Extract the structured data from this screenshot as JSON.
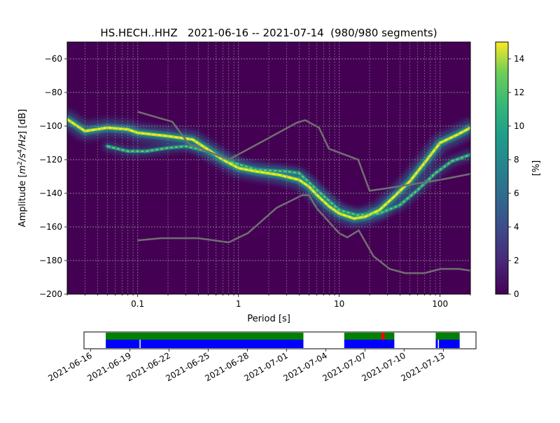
{
  "chart_data": {
    "type": "heatmap",
    "title": "HS.HECH..HHZ   2021-06-16 -- 2021-07-14  (980/980 segments)",
    "xlabel": "Period [s]",
    "ylabel_prefix": "Amplitude [",
    "ylabel_unit_main": "m",
    "ylabel_sup1": "2",
    "ylabel_mid": "/s",
    "ylabel_sup2": "4",
    "ylabel_end": "/Hz",
    "ylabel_suffix": "] [dB]",
    "x_scale": "log",
    "xlim": [
      0.02,
      200
    ],
    "ylim": [
      -200,
      -50
    ],
    "x_ticks": [
      {
        "v": 0.1,
        "label": "0.1"
      },
      {
        "v": 1,
        "label": "1"
      },
      {
        "v": 10,
        "label": "10"
      },
      {
        "v": 100,
        "label": "100"
      }
    ],
    "y_ticks": [
      {
        "v": -60,
        "label": "−60"
      },
      {
        "v": -80,
        "label": "−80"
      },
      {
        "v": -100,
        "label": "−100"
      },
      {
        "v": -120,
        "label": "−120"
      },
      {
        "v": -140,
        "label": "−140"
      },
      {
        "v": -160,
        "label": "−160"
      },
      {
        "v": -180,
        "label": "−180"
      },
      {
        "v": -200,
        "label": "−200"
      }
    ],
    "grid": true,
    "colorbar": {
      "label": "[%]",
      "range": [
        0,
        15
      ],
      "ticks": [
        {
          "v": 0,
          "label": "0"
        },
        {
          "v": 2,
          "label": "2"
        },
        {
          "v": 4,
          "label": "4"
        },
        {
          "v": 6,
          "label": "6"
        },
        {
          "v": 8,
          "label": "8"
        },
        {
          "v": 10,
          "label": "10"
        },
        {
          "v": 12,
          "label": "12"
        },
        {
          "v": 14,
          "label": "14"
        }
      ],
      "colormap": "viridis"
    },
    "nhnm": [
      [
        0.1,
        -168
      ],
      [
        0.17,
        -166.7
      ],
      [
        0.4,
        -166.7
      ],
      [
        0.8,
        -169.2
      ],
      [
        1.24,
        -163.7
      ],
      [
        2.4,
        -148.6
      ],
      [
        4.3,
        -141.1
      ],
      [
        5,
        -141.1
      ],
      [
        6,
        -149
      ],
      [
        10,
        -163.8
      ],
      [
        12,
        -166.2
      ],
      [
        15.6,
        -162.1
      ],
      [
        21.9,
        -177.5
      ],
      [
        31.6,
        -185
      ],
      [
        45,
        -187.5
      ],
      [
        70,
        -187.5
      ],
      [
        101,
        -185
      ],
      [
        154,
        -185
      ],
      [
        200,
        -186
      ]
    ],
    "nlnm": [
      [
        0.1,
        -91.5
      ],
      [
        0.22,
        -97.4
      ],
      [
        0.32,
        -110.5
      ],
      [
        0.8,
        -120
      ],
      [
        3.8,
        -98
      ],
      [
        4.6,
        -96.5
      ],
      [
        6.3,
        -101
      ],
      [
        7.9,
        -113.5
      ],
      [
        15.4,
        -120
      ],
      [
        20,
        -138.5
      ],
      [
        30,
        -137
      ],
      [
        100,
        -132
      ],
      [
        200,
        -128.5
      ]
    ],
    "psd_ridge_main": [
      [
        0.02,
        -96
      ],
      [
        0.03,
        -103
      ],
      [
        0.05,
        -101
      ],
      [
        0.08,
        -102
      ],
      [
        0.1,
        -104
      ],
      [
        0.2,
        -106
      ],
      [
        0.35,
        -108
      ],
      [
        0.5,
        -114
      ],
      [
        0.7,
        -120
      ],
      [
        1,
        -125
      ],
      [
        1.5,
        -127
      ],
      [
        2.5,
        -129
      ],
      [
        4,
        -132
      ],
      [
        5,
        -136
      ],
      [
        6,
        -141
      ],
      [
        8,
        -148
      ],
      [
        10,
        -152
      ],
      [
        14,
        -155
      ],
      [
        18,
        -154
      ],
      [
        25,
        -150
      ],
      [
        35,
        -142
      ],
      [
        50,
        -133
      ],
      [
        70,
        -122
      ],
      [
        100,
        -110
      ],
      [
        150,
        -105
      ],
      [
        200,
        -101
      ]
    ],
    "psd_ridge_secondary": [
      [
        0.05,
        -112
      ],
      [
        0.08,
        -115
      ],
      [
        0.12,
        -115
      ],
      [
        0.2,
        -113
      ],
      [
        0.3,
        -112
      ],
      [
        0.5,
        -115
      ],
      [
        0.8,
        -121
      ],
      [
        1.5,
        -126
      ],
      [
        3,
        -127
      ],
      [
        4,
        -128
      ],
      [
        6,
        -138
      ],
      [
        10,
        -150
      ],
      [
        15,
        -153
      ],
      [
        25,
        -152
      ],
      [
        40,
        -147
      ],
      [
        60,
        -138
      ],
      [
        90,
        -128
      ],
      [
        130,
        -121
      ],
      [
        200,
        -117
      ]
    ],
    "timeline": {
      "x_ticks": [
        "2021-06-16",
        "2021-06-19",
        "2021-06-22",
        "2021-06-25",
        "2021-06-28",
        "2021-07-01",
        "2021-07-04",
        "2021-07-07",
        "2021-07-10",
        "2021-07-13"
      ],
      "start": "2021-06-15T12:00",
      "end": "2021-07-15T12:00",
      "coverage": [
        [
          "2021-06-17T04:00",
          "2021-07-02T07:00"
        ],
        [
          "2021-07-05T10:00",
          "2021-07-09T06:00"
        ],
        [
          "2021-07-12T10:00",
          "2021-07-14T06:00"
        ]
      ],
      "data_gaps": [
        "2021-06-19T18:00",
        "2021-07-12T14:00"
      ],
      "red_marks": [
        [
          "2021-07-08T06:00",
          "2021-07-08T12:00"
        ]
      ]
    }
  },
  "colors": {
    "nm_lines": "#707070",
    "grid": "#9a9a9a",
    "timeline_top": "#008000",
    "timeline_bottom": "#0000ff",
    "timeline_red": "#ff0000"
  }
}
